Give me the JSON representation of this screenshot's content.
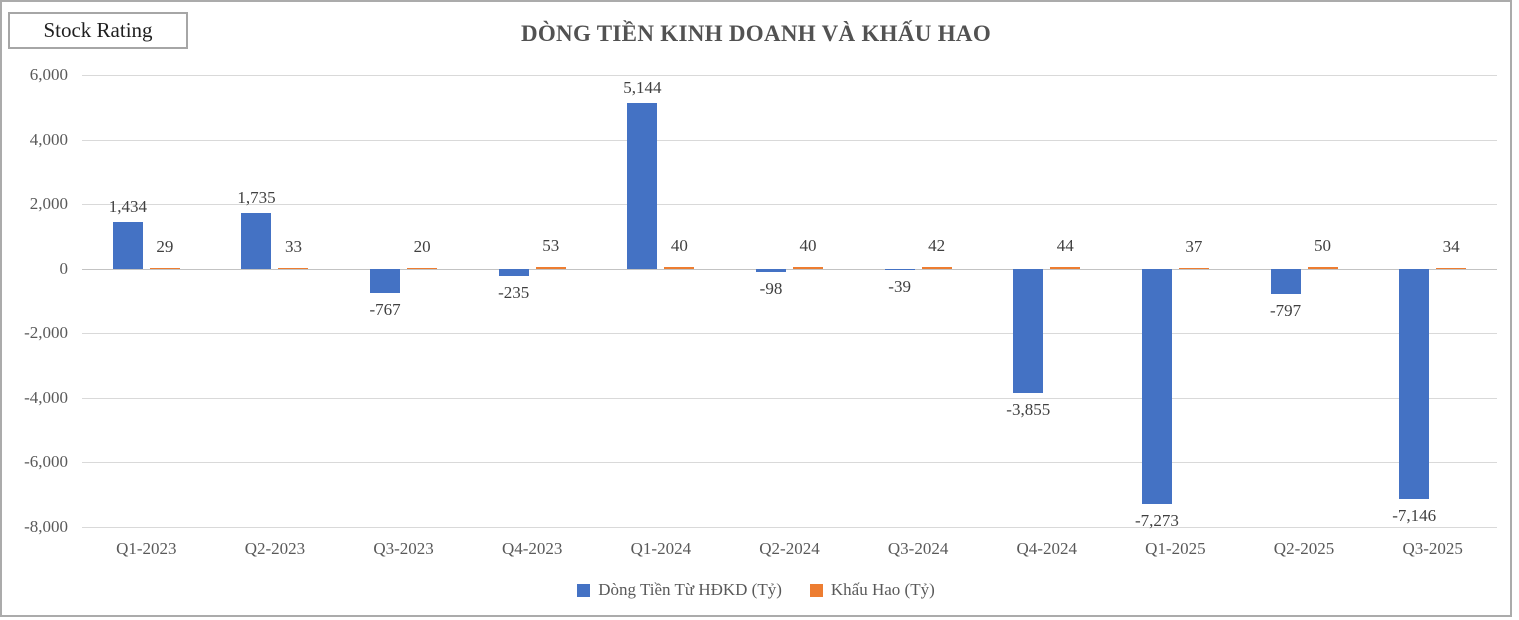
{
  "badge": {
    "label": "Stock Rating"
  },
  "colors": {
    "series_blue": "#4472C4",
    "series_orange": "#ED7D31",
    "gridline": "#D9D9D9",
    "axis_text": "#595959",
    "data_label_text": "#404040",
    "frame_border": "#ABABAB"
  },
  "chart_data": {
    "type": "bar",
    "title": "DÒNG TIỀN KINH DOANH VÀ KHẤU HAO",
    "categories": [
      "Q1-2023",
      "Q2-2023",
      "Q3-2023",
      "Q4-2023",
      "Q1-2024",
      "Q2-2024",
      "Q3-2024",
      "Q4-2024",
      "Q1-2025",
      "Q2-2025",
      "Q3-2025"
    ],
    "series": [
      {
        "key": "hdkd",
        "name": "Dòng Tiền Từ HĐKD (Tỷ)",
        "color": "#4472C4",
        "values": [
          1434,
          1735,
          -767,
          -235,
          5144,
          -98,
          -39,
          -3855,
          -7273,
          -797,
          -7146
        ],
        "labels": [
          "1,434",
          "1,735",
          "-767",
          "-235",
          "5,144",
          "-98",
          "-39",
          "-3,855",
          "-7,273",
          "-797",
          "-7,146"
        ]
      },
      {
        "key": "khauhao",
        "name": "Khấu Hao (Tỷ)",
        "color": "#ED7D31",
        "values": [
          29,
          33,
          20,
          53,
          40,
          40,
          42,
          44,
          37,
          50,
          34
        ],
        "labels": [
          "29",
          "33",
          "20",
          "53",
          "40",
          "40",
          "42",
          "44",
          "37",
          "50",
          "34"
        ]
      }
    ],
    "ylim": [
      -8000,
      6000
    ],
    "ytick_step": 2000,
    "ytick_labels": [
      "6,000",
      "4,000",
      "2,000",
      "0",
      "-2,000",
      "-4,000",
      "-6,000",
      "-8,000"
    ],
    "grid": true,
    "legend_position": "bottom"
  }
}
